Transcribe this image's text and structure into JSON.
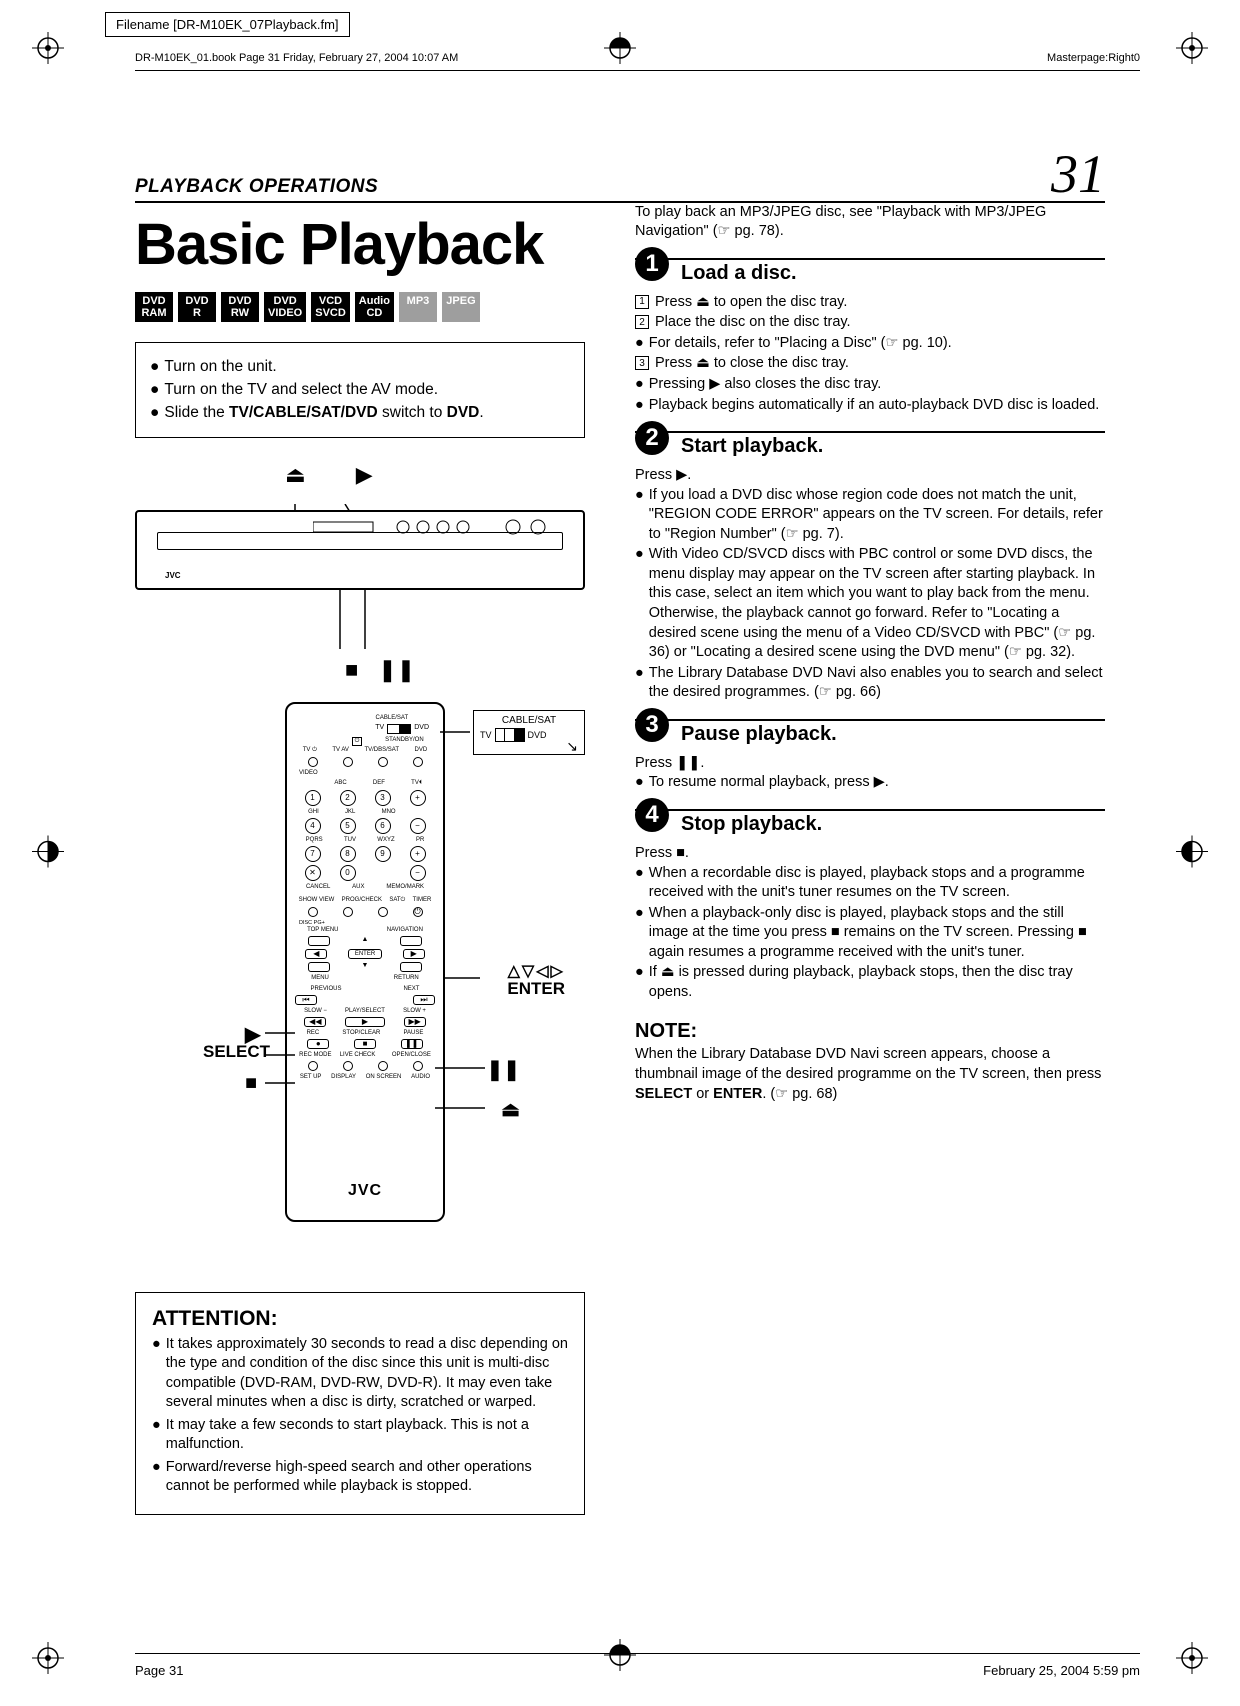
{
  "meta": {
    "filename": "Filename [DR-M10EK_07Playback.fm]",
    "book_header": "DR-M10EK_01.book  Page 31  Friday, February 27, 2004  10:07 AM",
    "masterpage": "Masterpage:Right0",
    "footer_page": "Page 31",
    "footer_date": "February 25, 2004 5:59 pm"
  },
  "header": {
    "section": "PLAYBACK OPERATIONS",
    "page_number": "31",
    "title": "Basic Playback"
  },
  "badges": [
    {
      "l1": "DVD",
      "l2": "RAM",
      "grey": false
    },
    {
      "l1": "DVD",
      "l2": "R",
      "grey": false
    },
    {
      "l1": "DVD",
      "l2": "RW",
      "grey": false
    },
    {
      "l1": "DVD",
      "l2": "VIDEO",
      "grey": false
    },
    {
      "l1": "VCD",
      "l2": "SVCD",
      "grey": false
    },
    {
      "l1": "Audio",
      "l2": "CD",
      "grey": false
    },
    {
      "l1": "MP3",
      "l2": "",
      "grey": true
    },
    {
      "l1": "JPEG",
      "l2": "",
      "grey": true
    }
  ],
  "setup": {
    "line1": "Turn on the unit.",
    "line2": "Turn on the TV and select the AV mode.",
    "line3_a": "Slide the ",
    "line3_b": "TV/CABLE/SAT/DVD",
    "line3_c": " switch to ",
    "line3_d": "DVD",
    "line3_e": "."
  },
  "device": {
    "brand": "JVC"
  },
  "callouts": {
    "cable_title": "CABLE/SAT",
    "cable_tv": "TV",
    "cable_dvd": "DVD",
    "enter_arrows": "△▽◁▷",
    "enter": "ENTER",
    "select": "SELECT",
    "jvc": "JVC"
  },
  "remote_labels": {
    "row1": [
      "CABLE/SAT"
    ],
    "row1b": [
      "TV",
      "DVD"
    ],
    "row2": [
      "STANDBY/ON"
    ],
    "row2b": [
      "TV ⏻",
      "TV AV",
      "TV/DBS/SAT",
      "DVD"
    ],
    "video": "VIDEO",
    "numrow1": [
      "ABC",
      "DEF",
      "TV⏴"
    ],
    "num1": [
      "1",
      "2",
      "3",
      "+"
    ],
    "numrow2": [
      "GHI",
      "JKL",
      "MNO"
    ],
    "num2": [
      "4",
      "5",
      "6",
      "−"
    ],
    "numrow3": [
      "PQRS",
      "TUV",
      "WXYZ",
      "PR"
    ],
    "num3": [
      "7",
      "8",
      "9",
      "+"
    ],
    "num4": [
      "✕",
      "0",
      "",
      "−"
    ],
    "bottom4": [
      "CANCEL",
      "AUX",
      "MEMO/MARK"
    ],
    "row5": [
      "SHOW VIEW",
      "PROG/CHECK",
      "SAT⏻",
      "TIMER"
    ],
    "row5b": "DISC PG+",
    "row6": [
      "TOP MENU",
      "NAVIGATION"
    ],
    "enter_row": [
      "◀",
      "ENTER",
      "▶"
    ],
    "row7": [
      "MENU",
      "RETURN"
    ],
    "row8": [
      "PREVIOUS",
      "NEXT"
    ],
    "row9": [
      "SLOW −",
      "PLAY/SELECT",
      "SLOW +"
    ],
    "row10": [
      "REC",
      "STOP/CLEAR",
      "PAUSE"
    ],
    "row11": [
      "REC MODE",
      "LIVE CHECK",
      "",
      "OPEN/CLOSE"
    ],
    "row12": [
      "SET UP",
      "DISPLAY",
      "ON SCREEN",
      "AUDIO"
    ]
  },
  "attention": {
    "title": "ATTENTION:",
    "item1": "It takes approximately 30 seconds to read a disc depending on the type and condition of the disc since this unit is multi-disc compatible (DVD-RAM, DVD-RW, DVD-R). It may even take several minutes when a disc is dirty, scratched or warped.",
    "item2": "It may take a few seconds to start playback. This is not a malfunction.",
    "item3": "Forward/reverse high-speed search and other operations cannot be performed while playback is stopped."
  },
  "intro": "To play back an MP3/JPEG disc, see \"Playback with MP3/JPEG Navigation\" (☞ pg. 78).",
  "steps": [
    {
      "num": "1",
      "title": "Load a disc.",
      "lines": [
        {
          "type": "num",
          "n": "1",
          "text": "Press ⏏ to open the disc tray."
        },
        {
          "type": "num",
          "n": "2",
          "text": "Place the disc on the disc tray."
        },
        {
          "type": "bul",
          "text": "For details, refer to \"Placing a Disc\" (☞ pg. 10)."
        },
        {
          "type": "num",
          "n": "3",
          "text": "Press ⏏ to close the disc tray."
        },
        {
          "type": "bul",
          "text": "Pressing ▶ also closes the disc tray."
        },
        {
          "type": "bul",
          "text": "Playback begins automatically if an auto-playback DVD disc is loaded."
        }
      ]
    },
    {
      "num": "2",
      "title": "Start playback.",
      "lead": "Press ▶.",
      "lines": [
        {
          "type": "bul",
          "text": "If you load a DVD disc whose region code does not match the unit, \"REGION CODE ERROR\" appears on the TV screen. For details, refer to \"Region Number\" (☞ pg. 7)."
        },
        {
          "type": "bul",
          "text": "With Video CD/SVCD discs with PBC control or some DVD discs, the menu display may appear on the TV screen after starting playback. In this case, select an item which you want to play back from the menu. Otherwise, the playback cannot go forward. Refer to \"Locating a desired scene using the menu of a Video CD/SVCD with PBC\" (☞ pg. 36) or \"Locating a desired scene using the DVD menu\" (☞ pg. 32)."
        },
        {
          "type": "bul",
          "text": "The Library Database DVD Navi also enables you to search and select the desired programmes. (☞ pg. 66)"
        }
      ]
    },
    {
      "num": "3",
      "title": "Pause playback.",
      "lead": "Press ❚❚.",
      "lines": [
        {
          "type": "bul",
          "text": "To resume normal playback, press ▶."
        }
      ]
    },
    {
      "num": "4",
      "title": "Stop playback.",
      "lead": "Press ■.",
      "lines": [
        {
          "type": "bul",
          "text": "When a recordable disc is played, playback stops and a programme received with the unit's tuner resumes on the TV screen."
        },
        {
          "type": "bul",
          "text": "When a playback-only disc is played, playback stops and the still image at the time you press ■ remains on the TV screen. Pressing ■ again resumes a programme received with the unit's tuner."
        },
        {
          "type": "bul",
          "text": "If ⏏ is pressed during playback, playback stops, then the disc tray opens."
        }
      ]
    }
  ],
  "note": {
    "title": "NOTE:",
    "body_a": "When the Library Database DVD Navi screen appears, choose a thumbnail image of the desired programme on the TV screen, then press ",
    "body_b": "SELECT",
    "body_c": " or ",
    "body_d": "ENTER",
    "body_e": ". (☞ pg. 68)"
  }
}
